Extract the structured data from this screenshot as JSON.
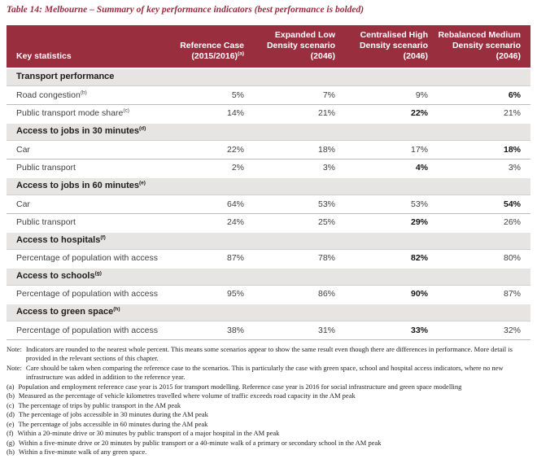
{
  "title": "Table 14: Melbourne – Summary of key performance indicators (best performance is bolded)",
  "colors": {
    "header_bg": "#992e3f",
    "title_red": "#992e3f",
    "section_bg": "#e6e5e3",
    "row_line": "#bcbcba"
  },
  "table": {
    "header": {
      "key_statistics": "Key statistics",
      "cols": [
        {
          "text": "Reference Case (2015/2016)",
          "sup": "(a)"
        },
        {
          "text": "Expanded Low Density scenario (2046)",
          "sup": ""
        },
        {
          "text": "Centralised High Density scenario (2046)",
          "sup": ""
        },
        {
          "text": "Rebalanced Medium Density scenario (2046)",
          "sup": ""
        }
      ]
    },
    "sections": [
      {
        "label": "Transport performance",
        "sup": "",
        "rows": [
          {
            "label": "Road congestion",
            "sup": "(b)",
            "values": [
              "5%",
              "7%",
              "9%",
              "6%"
            ],
            "bold": 3
          },
          {
            "label": "Public transport mode share",
            "sup": "(c)",
            "values": [
              "14%",
              "21%",
              "22%",
              "21%"
            ],
            "bold": 2
          }
        ]
      },
      {
        "label": "Access to jobs in 30 minutes",
        "sup": "(d)",
        "rows": [
          {
            "label": "Car",
            "sup": "",
            "values": [
              "22%",
              "18%",
              "17%",
              "18%"
            ],
            "bold": 3
          },
          {
            "label": "Public transport",
            "sup": "",
            "values": [
              "2%",
              "3%",
              "4%",
              "3%"
            ],
            "bold": 2
          }
        ]
      },
      {
        "label": "Access to jobs in 60 minutes",
        "sup": "(e)",
        "rows": [
          {
            "label": "Car",
            "sup": "",
            "values": [
              "64%",
              "53%",
              "53%",
              "54%"
            ],
            "bold": 3
          },
          {
            "label": "Public transport",
            "sup": "",
            "values": [
              "24%",
              "25%",
              "29%",
              "26%"
            ],
            "bold": 2
          }
        ]
      },
      {
        "label": "Access to hospitals",
        "sup": "(f)",
        "rows": [
          {
            "label": "Percentage of population with access",
            "sup": "",
            "values": [
              "87%",
              "78%",
              "82%",
              "80%"
            ],
            "bold": 2
          }
        ]
      },
      {
        "label": "Access to schools",
        "sup": "(g)",
        "rows": [
          {
            "label": "Percentage of population with access",
            "sup": "",
            "values": [
              "95%",
              "86%",
              "90%",
              "87%"
            ],
            "bold": 2
          }
        ]
      },
      {
        "label": "Access to green space",
        "sup": "(h)",
        "rows": [
          {
            "label": "Percentage of population with access",
            "sup": "",
            "values": [
              "38%",
              "31%",
              "33%",
              "32%"
            ],
            "bold": 2
          }
        ]
      }
    ]
  },
  "notes": [
    {
      "label": "Note:",
      "text": "Indicators are rounded to the nearest whole percent. This means some scenarios appear to show the same result even though there are differences in performance. More detail is provided in the relevant sections of this chapter."
    },
    {
      "label": "Note:",
      "text": "Care should be taken when comparing the reference case to the scenarios. This is particularly the case with green space, school and hospital access indicators, where no new infrastructure was added in addition to the reference year."
    },
    {
      "label": "(a)",
      "text": "Population and employment reference case year is 2015 for transport modelling. Reference case year is 2016 for social infrastructure and green space modelling"
    },
    {
      "label": "(b)",
      "text": "Measured as the percentage of vehicle kilometres travelled where volume of traffic exceeds road capacity in the AM peak"
    },
    {
      "label": "(c)",
      "text": "The percentage of trips by public transport in the AM peak"
    },
    {
      "label": "(d)",
      "text": "The percentage of jobs accessible in 30 minutes during the AM peak"
    },
    {
      "label": "(e)",
      "text": "The percentage of jobs accessible in 60 minutes during the AM peak"
    },
    {
      "label": "(f)",
      "text": "Within a 20-minute drive or 30 minutes by public transport of a major hospital in the AM peak"
    },
    {
      "label": "(g)",
      "text": "Within a five-minute drive or 20 minutes by public transport or a 40-minute walk of a primary or secondary school in the AM peak"
    },
    {
      "label": "(h)",
      "text": "Within a five-minute walk of any green space."
    }
  ]
}
